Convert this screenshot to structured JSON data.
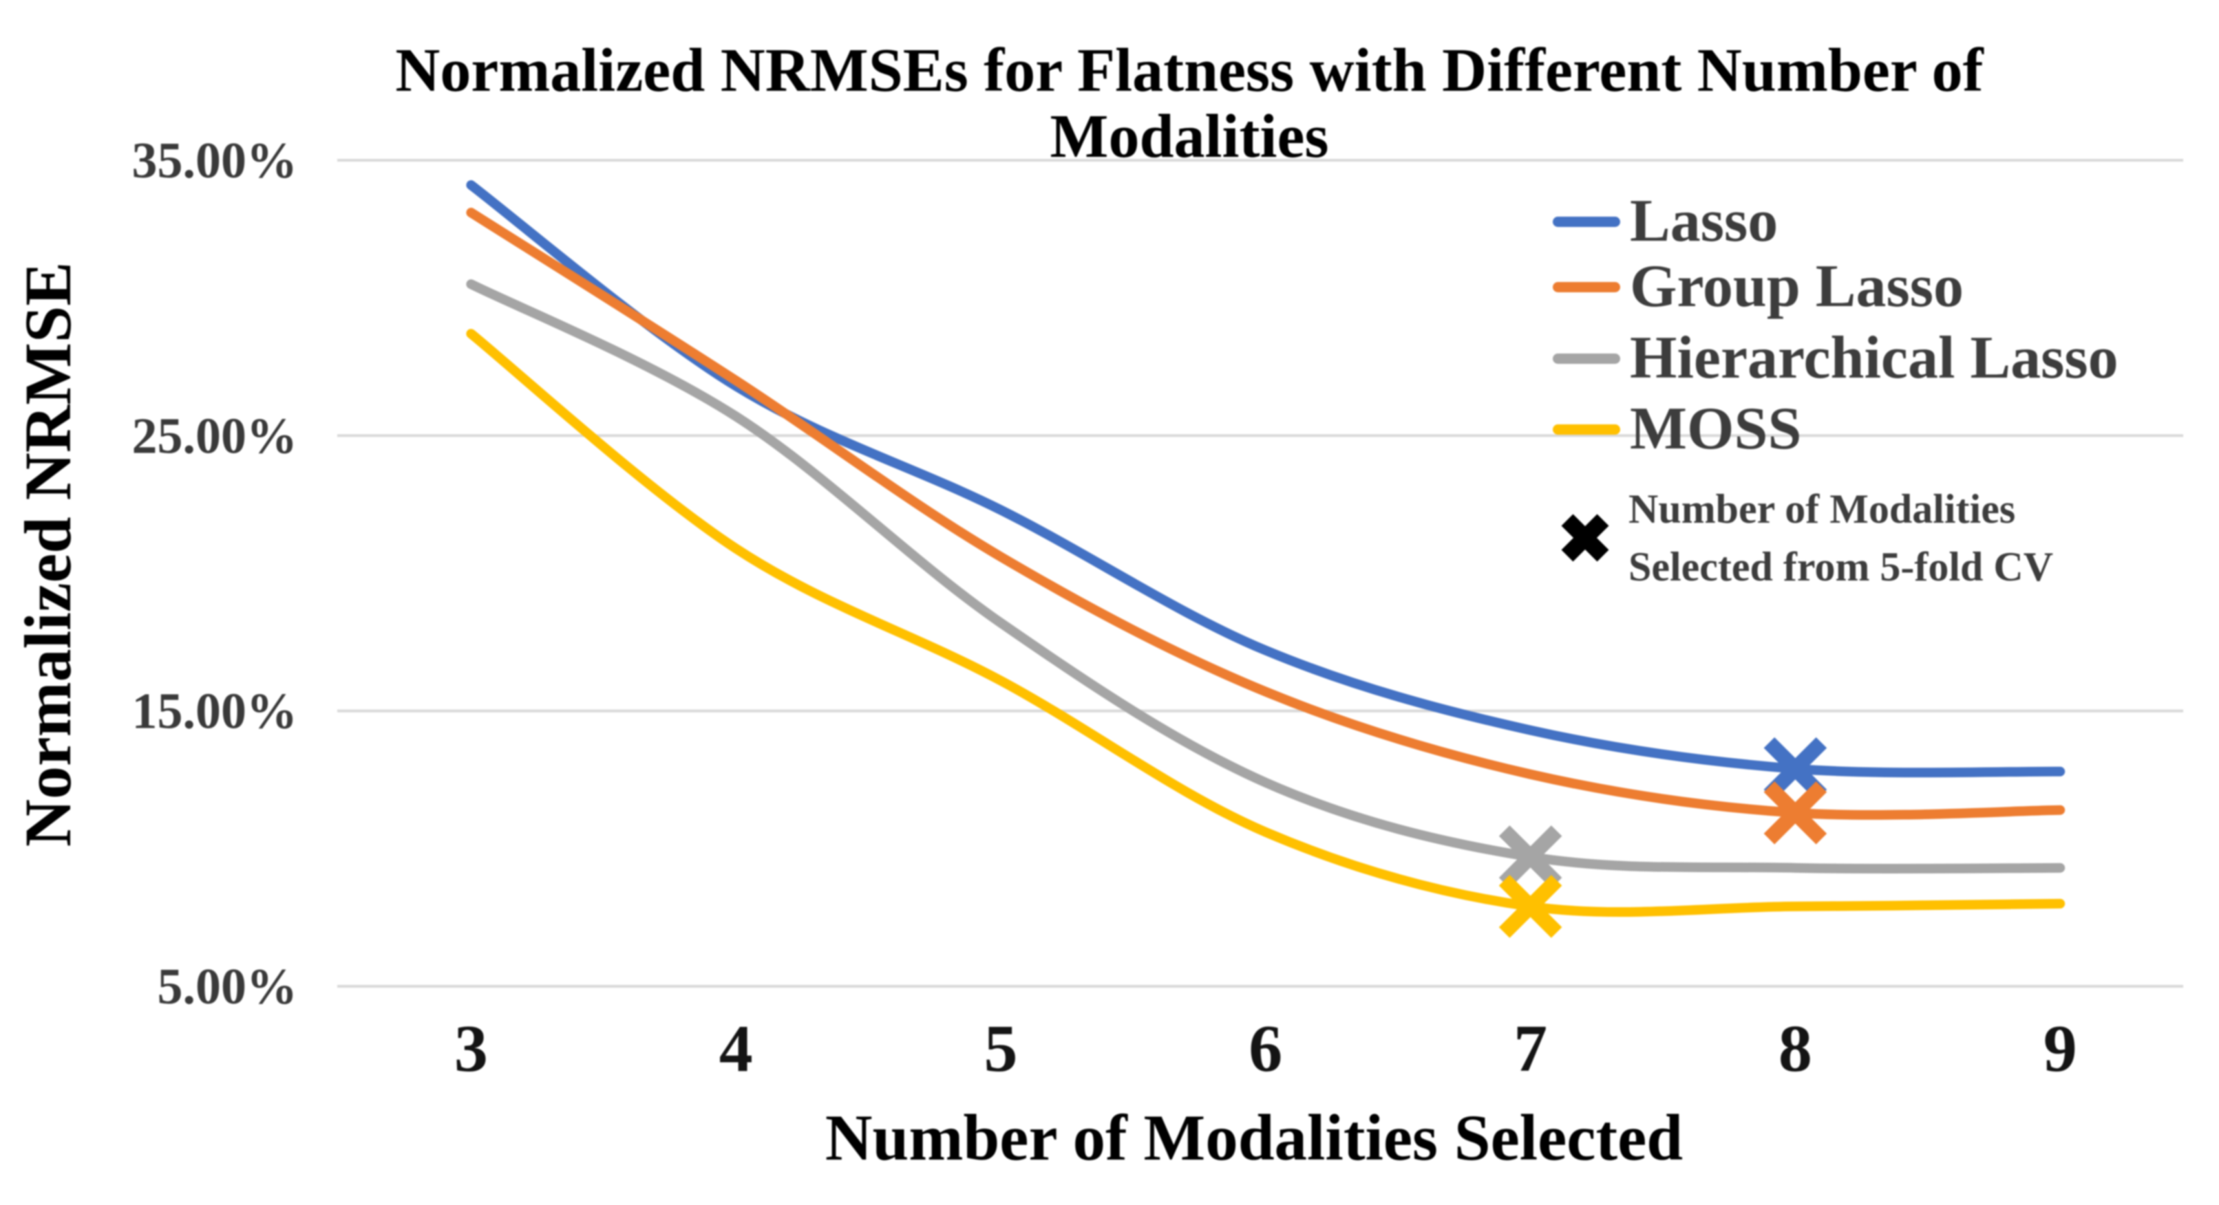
{
  "title": {
    "line1": "Normalized NRMSEs for Flatness with Different Number of",
    "line2": "Modalities"
  },
  "y_axis": {
    "title": "Normalized NRMSE",
    "tick_labels": [
      "35.00%",
      "25.00%",
      "15.00%",
      "5.00%"
    ],
    "tick_values": [
      35,
      25,
      15,
      5
    ]
  },
  "x_axis": {
    "title": "Number of Modalities Selected",
    "tick_labels": [
      "3",
      "4",
      "5",
      "6",
      "7",
      "8",
      "9"
    ]
  },
  "legend": {
    "cv_marker": {
      "icon": "x-marker-icon",
      "color": "#000000",
      "line1": "Number of Modalities",
      "line2": "Selected from 5-fold CV"
    }
  },
  "colors": {
    "gridline": "#d9d9d9",
    "lasso": "#4472C4",
    "group_lasso": "#ED7D31",
    "hierarchical_lasso": "#A5A5A5",
    "moss": "#FFC000",
    "cv_marker": "#000000"
  },
  "chart_data": {
    "type": "line",
    "title": "Normalized NRMSEs for Flatness with Different Number of Modalities",
    "xlabel": "Number of Modalities Selected",
    "ylabel": "Normalized NRMSE",
    "x": [
      3,
      4,
      5,
      6,
      7,
      8,
      9
    ],
    "ylim": [
      5,
      35
    ],
    "y_gridlines": [
      35,
      25,
      15,
      5
    ],
    "grid": true,
    "legend_position": "upper right inside",
    "line_style": "smooth",
    "series": [
      {
        "name": "Lasso",
        "color": "#4472C4",
        "values": [
          34.1,
          26.8,
          22.3,
          17.2,
          14.3,
          12.9,
          12.8
        ],
        "cv_selected": {
          "x": 8,
          "y": 12.9
        }
      },
      {
        "name": "Group Lasso",
        "color": "#ED7D31",
        "values": [
          33.1,
          27.0,
          20.6,
          15.7,
          12.7,
          11.3,
          11.4
        ],
        "cv_selected": {
          "x": 8,
          "y": 11.3
        }
      },
      {
        "name": "Hierarchical Lasso",
        "color": "#A5A5A5",
        "values": [
          30.5,
          25.7,
          18.2,
          12.4,
          9.7,
          9.3,
          9.3
        ],
        "cv_selected": {
          "x": 7,
          "y": 9.7
        }
      },
      {
        "name": "MOSS",
        "color": "#FFC000",
        "values": [
          28.7,
          20.9,
          16.1,
          10.6,
          7.9,
          7.9,
          8.0
        ],
        "cv_selected": {
          "x": 7,
          "y": 7.9
        }
      }
    ],
    "marker_meaning": "Number of Modalities Selected from 5-fold CV"
  }
}
